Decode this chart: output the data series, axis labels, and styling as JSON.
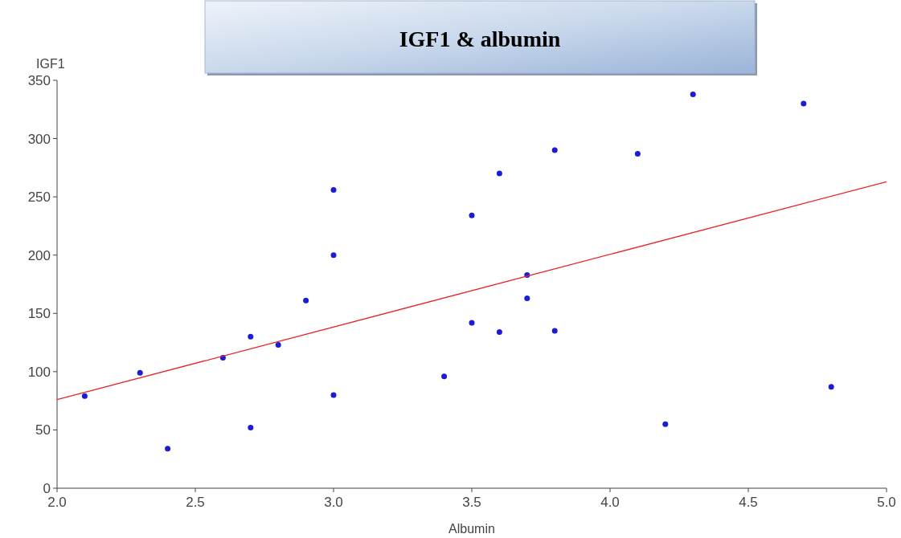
{
  "chart_data": {
    "type": "scatter",
    "title": "IGF1 & albumin",
    "xlabel": "Albumin",
    "ylabel": "IGF1",
    "xlim": [
      2,
      5
    ],
    "xticks": [
      {
        "value": 2,
        "label": "2.0"
      },
      {
        "value": 2.5,
        "label": "2.5"
      },
      {
        "value": 3,
        "label": "3.0"
      },
      {
        "value": 3.5,
        "label": "3.5"
      },
      {
        "value": 4,
        "label": "4.0"
      },
      {
        "value": 4.5,
        "label": "4.5"
      },
      {
        "value": 5,
        "label": "5.0"
      }
    ],
    "ylim": [
      0,
      350
    ],
    "yticks": [
      0,
      50,
      100,
      150,
      200,
      250,
      300,
      350
    ],
    "grid": false,
    "marker": "circle",
    "series": [
      {
        "color": "#1c1cd6",
        "x": [
          2.1,
          2.3,
          2.4,
          2.6,
          2.7,
          2.7,
          2.8,
          2.9,
          3.0,
          3.0,
          3.0,
          3.4,
          3.5,
          3.5,
          3.6,
          3.6,
          3.7,
          3.7,
          3.8,
          3.8,
          4.1,
          4.2,
          4.3,
          4.7,
          4.8
        ],
        "values": [
          79,
          99,
          34,
          112,
          130,
          52,
          123,
          161,
          256,
          200,
          80,
          96,
          234,
          142,
          270,
          134,
          183,
          163,
          290,
          135,
          287,
          55,
          338,
          330,
          87
        ]
      },
      {
        "type": "line",
        "color": "#e8262a",
        "marker": "none",
        "line_style": "solid",
        "x": [
          2,
          5
        ],
        "values": [
          76,
          263
        ]
      }
    ]
  }
}
